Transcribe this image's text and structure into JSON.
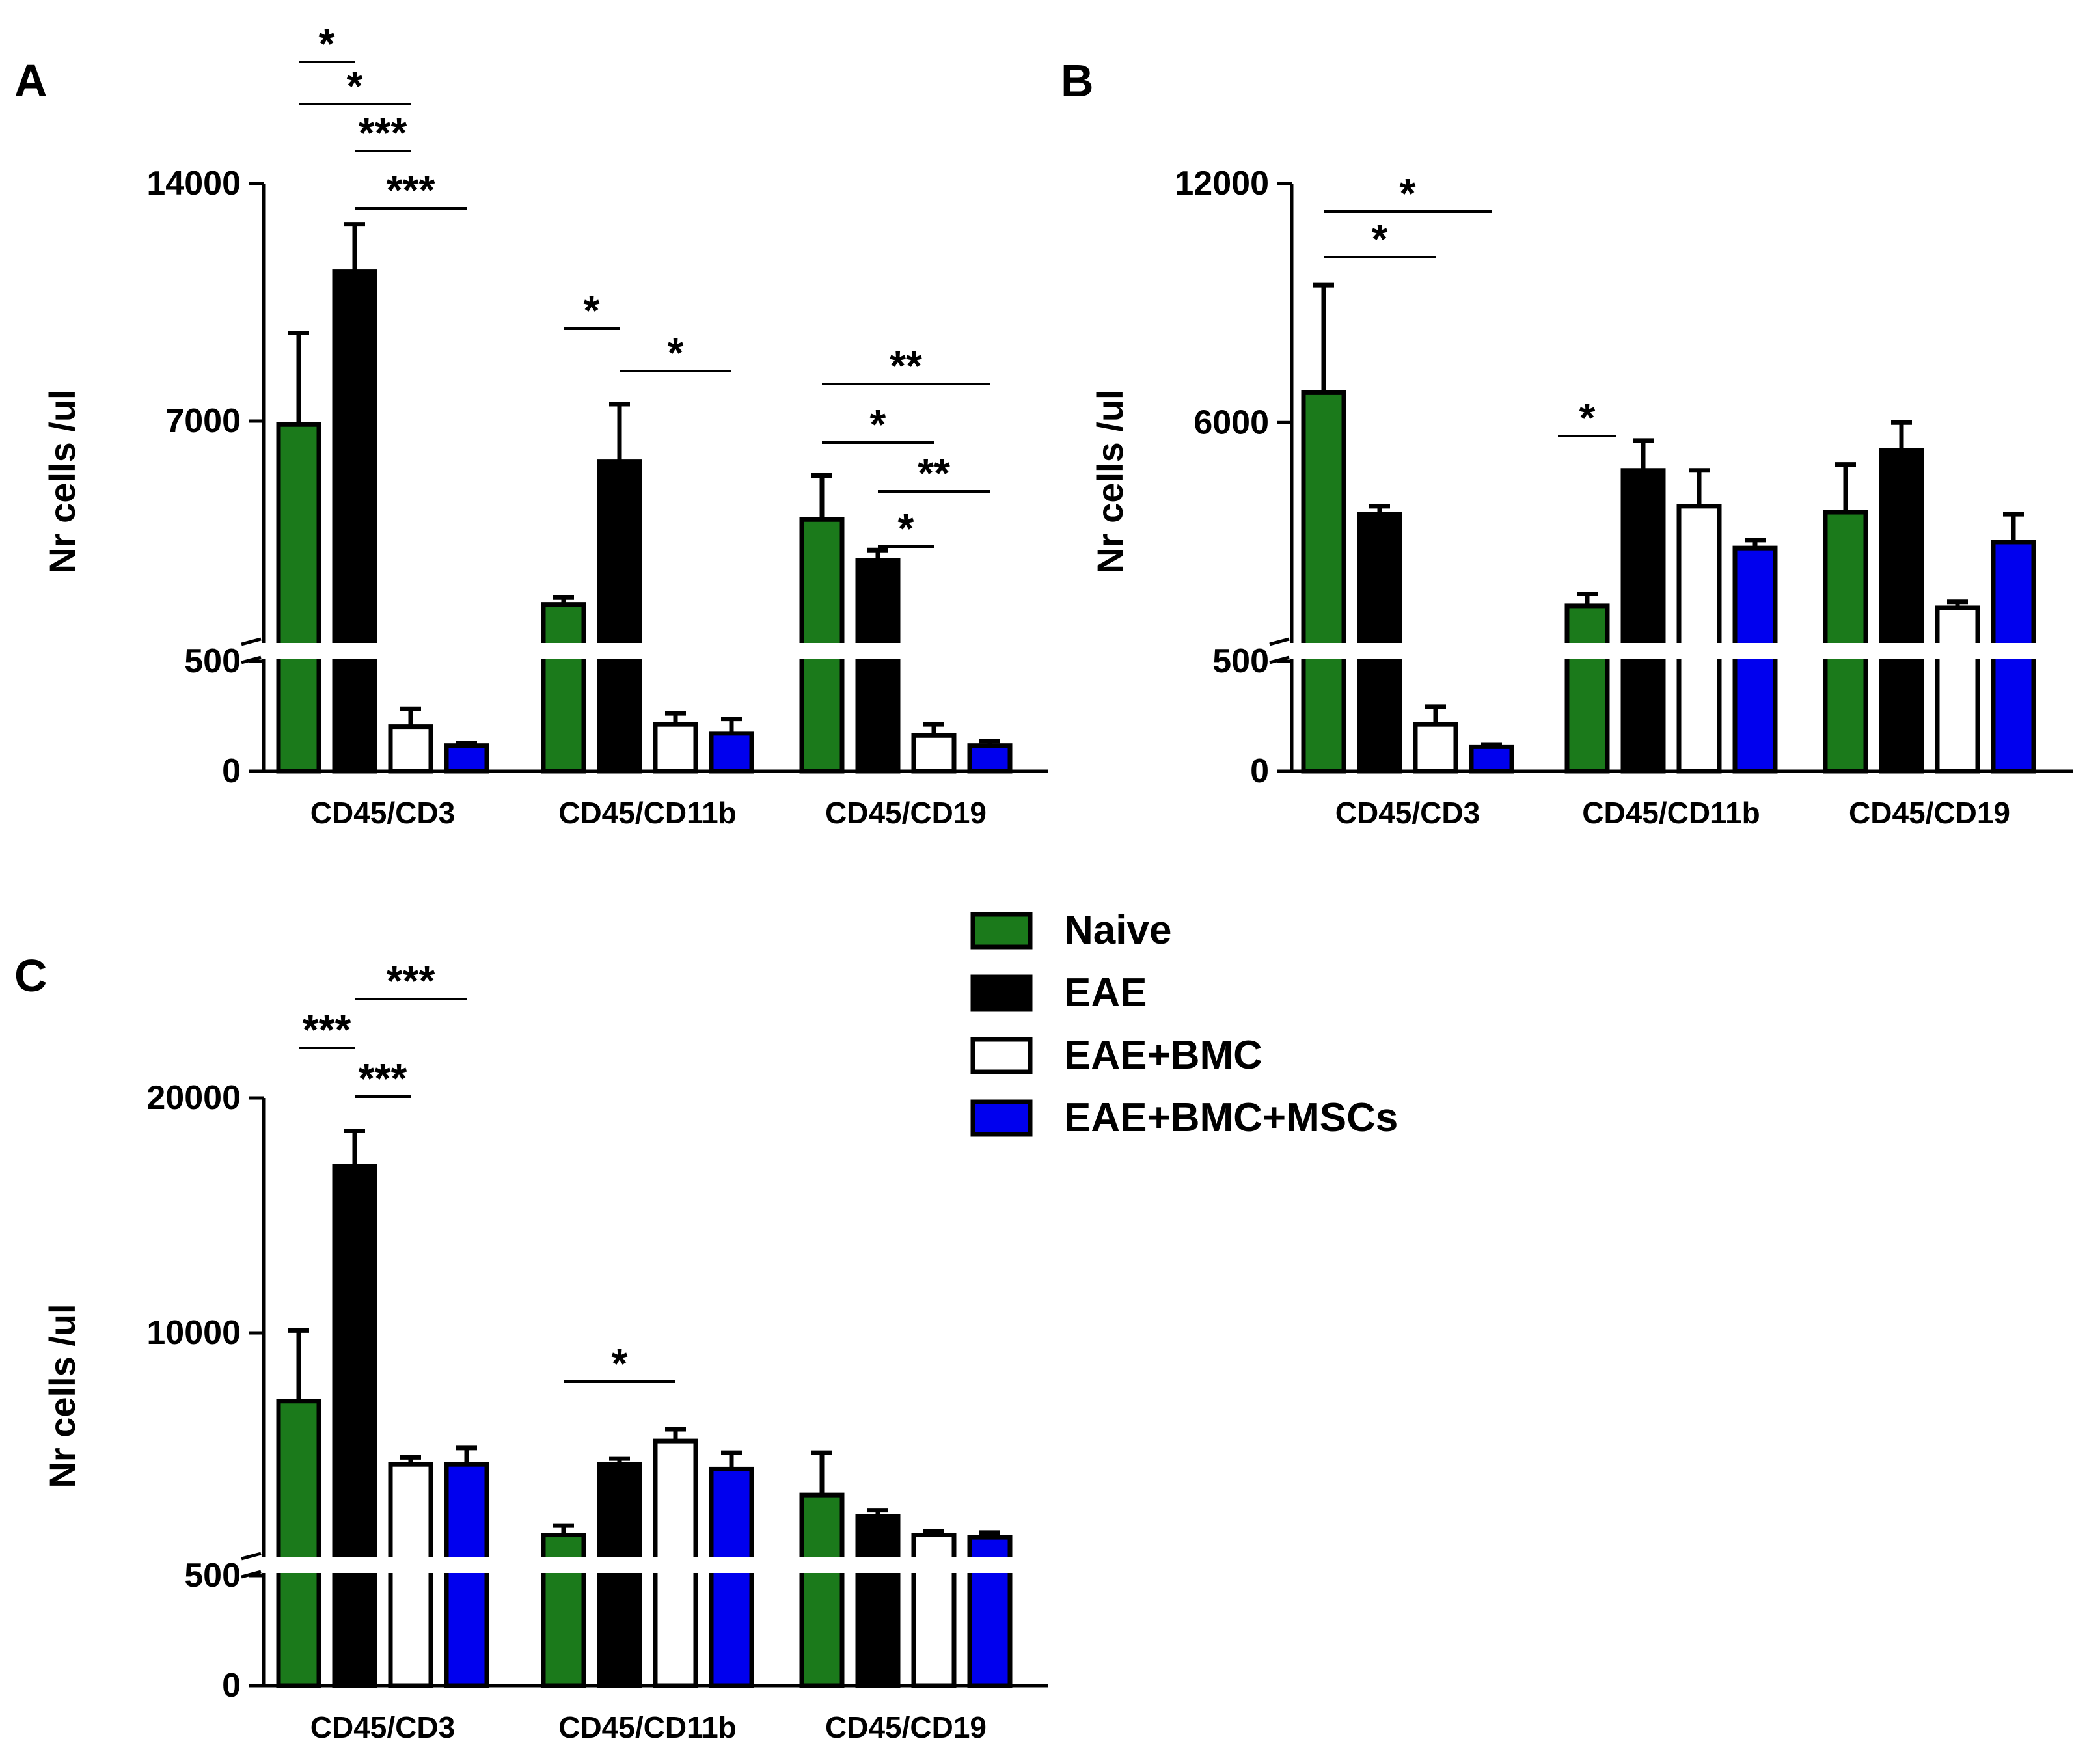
{
  "legend": [
    {
      "label": "Naive",
      "color": "#1b7a1b"
    },
    {
      "label": "EAE",
      "color": "#000000"
    },
    {
      "label": "EAE+BMC",
      "color": "#ffffff"
    },
    {
      "label": "EAE+BMC+MSCs",
      "color": "#0000ee"
    }
  ],
  "chart_data": [
    {
      "panel": "A",
      "type": "bar",
      "ylabel": "Nr cells /ul",
      "categories": [
        "CD45/CD3",
        "CD45/CD11b",
        "CD45/CD19"
      ],
      "y_ticks": [
        "0",
        "500",
        "7000",
        "14000"
      ],
      "axis_break": {
        "lower_range": [
          0,
          500
        ],
        "upper_range": [
          500,
          14000
        ]
      },
      "series": [
        {
          "name": "Naive",
          "values": [
            6900,
            1600,
            4100
          ],
          "errors": [
            2700,
            200,
            1300
          ]
        },
        {
          "name": "EAE",
          "values": [
            11400,
            5800,
            2900
          ],
          "errors": [
            1400,
            1700,
            300
          ]
        },
        {
          "name": "EAE+BMC",
          "values": [
            200,
            210,
            160
          ],
          "errors": [
            80,
            50,
            50
          ]
        },
        {
          "name": "EAE+BMC+MSCs",
          "values": [
            115,
            170,
            115
          ],
          "errors": [
            10,
            65,
            20
          ]
        }
      ],
      "significance": [
        {
          "label": "*",
          "from_group": 0,
          "from_series": 0,
          "to_group": 0,
          "to_series": 1
        },
        {
          "label": "*",
          "from_group": 0,
          "from_series": 0,
          "to_group": 0,
          "to_series": 2
        },
        {
          "label": "***",
          "from_group": 0,
          "from_series": 1,
          "to_group": 0,
          "to_series": 2
        },
        {
          "label": "***",
          "from_group": 0,
          "from_series": 1,
          "to_group": 0,
          "to_series": 3
        },
        {
          "label": "*",
          "from_group": 1,
          "from_series": 0,
          "to_group": 1,
          "to_series": 1
        },
        {
          "label": "*",
          "from_group": 1,
          "from_series": 1,
          "to_group": 1,
          "to_series": 3
        },
        {
          "label": "**",
          "from_group": 2,
          "from_series": 0,
          "to_group": 2,
          "to_series": 3
        },
        {
          "label": "*",
          "from_group": 2,
          "from_series": 0,
          "to_group": 2,
          "to_series": 2
        },
        {
          "label": "**",
          "from_group": 2,
          "from_series": 1,
          "to_group": 2,
          "to_series": 3
        },
        {
          "label": "*",
          "from_group": 2,
          "from_series": 1,
          "to_group": 2,
          "to_series": 2
        }
      ]
    },
    {
      "panel": "B",
      "type": "bar",
      "ylabel": "Nr cells /ul",
      "categories": [
        "CD45/CD3",
        "CD45/CD11b",
        "CD45/CD19"
      ],
      "y_ticks": [
        "0",
        "500",
        "6000",
        "12000"
      ],
      "axis_break": {
        "lower_range": [
          0,
          500
        ],
        "upper_range": [
          500,
          12000
        ]
      },
      "series": [
        {
          "name": "Naive",
          "values": [
            6750,
            1400,
            3750
          ],
          "errors": [
            2700,
            300,
            1200
          ]
        },
        {
          "name": "EAE",
          "values": [
            3700,
            4800,
            5300
          ],
          "errors": [
            200,
            750,
            700
          ]
        },
        {
          "name": "EAE+BMC",
          "values": [
            210,
            3900,
            1350
          ],
          "errors": [
            80,
            900,
            150
          ]
        },
        {
          "name": "EAE+BMC+MSCs",
          "values": [
            110,
            2850,
            3000
          ],
          "errors": [
            10,
            200,
            700
          ]
        }
      ],
      "significance": [
        {
          "label": "*",
          "from_group": 0,
          "from_series": 0,
          "to_group": 0,
          "to_series": 3
        },
        {
          "label": "*",
          "from_group": 0,
          "from_series": 0,
          "to_group": 0,
          "to_series": 2
        },
        {
          "label": "*",
          "from_group": 1,
          "from_series": 0,
          "to_group": 1,
          "to_series": 0
        }
      ]
    },
    {
      "panel": "C",
      "type": "bar",
      "ylabel": "Nr cells /ul",
      "categories": [
        "CD45/CD3",
        "CD45/CD11b",
        "CD45/CD19"
      ],
      "y_ticks": [
        "0",
        "500",
        "10000",
        "20000"
      ],
      "axis_break": {
        "lower_range": [
          0,
          500
        ],
        "upper_range": [
          500,
          20000
        ]
      },
      "series": [
        {
          "name": "Naive",
          "values": [
            7100,
            1400,
            3100
          ],
          "errors": [
            3000,
            400,
            1800
          ]
        },
        {
          "name": "EAE",
          "values": [
            17100,
            4400,
            2200
          ],
          "errors": [
            1500,
            250,
            250
          ]
        },
        {
          "name": "EAE+BMC",
          "values": [
            4400,
            5400,
            1400
          ],
          "errors": [
            300,
            500,
            150
          ]
        },
        {
          "name": "EAE+BMC+MSCs",
          "values": [
            4400,
            4200,
            1300
          ],
          "errors": [
            700,
            700,
            200
          ]
        }
      ],
      "significance": [
        {
          "label": "***",
          "from_group": 0,
          "from_series": 0,
          "to_group": 0,
          "to_series": 1
        },
        {
          "label": "***",
          "from_group": 0,
          "from_series": 1,
          "to_group": 0,
          "to_series": 3
        },
        {
          "label": "***",
          "from_group": 0,
          "from_series": 1,
          "to_group": 0,
          "to_series": 2
        },
        {
          "label": "*",
          "from_group": 1,
          "from_series": 0,
          "to_group": 1,
          "to_series": 2
        }
      ]
    }
  ]
}
